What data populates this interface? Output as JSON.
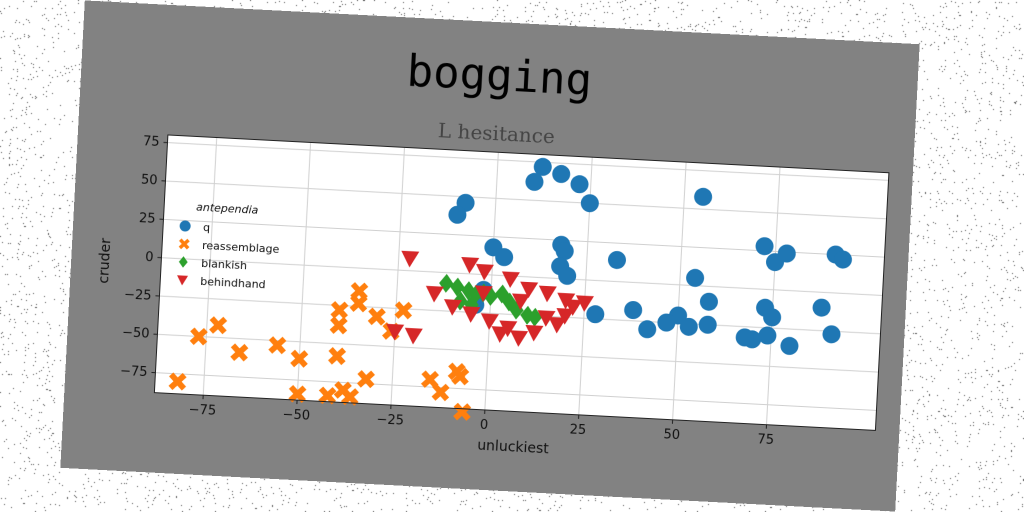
{
  "chart_data": {
    "type": "scatter",
    "title": "bogging",
    "subtitle": "L hesitance",
    "xlabel": "unluckiest",
    "ylabel": "cruder",
    "xlim": [
      -88,
      104
    ],
    "ylim": [
      -88,
      80
    ],
    "xticks": [
      -75,
      -50,
      -25,
      0,
      25,
      50,
      75
    ],
    "yticks": [
      75,
      50,
      25,
      0,
      -25,
      -50,
      -75
    ],
    "xtick_labels": [
      "−75",
      "−50",
      "−25",
      "0",
      "25",
      "50",
      "75"
    ],
    "ytick_labels": [
      "75",
      "50",
      "25",
      "0",
      "−25",
      "−50",
      "−75"
    ],
    "grid": true,
    "legend": {
      "title": "antependia",
      "position": "center-left"
    },
    "series": [
      {
        "name": "q",
        "color": "#1f77b4",
        "marker": "circle",
        "points": [
          [
            12,
            72
          ],
          [
            17,
            68
          ],
          [
            10,
            62
          ],
          [
            22,
            62
          ],
          [
            25,
            50
          ],
          [
            -8,
            46
          ],
          [
            -10,
            38
          ],
          [
            55,
            58
          ],
          [
            0,
            18
          ],
          [
            3,
            12
          ],
          [
            18,
            22
          ],
          [
            19,
            18
          ],
          [
            33,
            14
          ],
          [
            18,
            8
          ],
          [
            20,
            2
          ],
          [
            72,
            28
          ],
          [
            78,
            24
          ],
          [
            75,
            18
          ],
          [
            91,
            25
          ],
          [
            93,
            22
          ],
          [
            54,
            5
          ],
          [
            -2,
            -10
          ],
          [
            -4,
            -20
          ],
          [
            28,
            -22
          ],
          [
            38,
            -18
          ],
          [
            50,
            -20
          ],
          [
            47,
            -25
          ],
          [
            42,
            -30
          ],
          [
            53,
            -27
          ],
          [
            58,
            -25
          ],
          [
            58,
            -10
          ],
          [
            73,
            -12
          ],
          [
            75,
            -18
          ],
          [
            74,
            -30
          ],
          [
            70,
            -33
          ],
          [
            68,
            -32
          ],
          [
            80,
            -36
          ],
          [
            88,
            -10
          ],
          [
            91,
            -27
          ]
        ]
      },
      {
        "name": "reassemblage",
        "color": "#ff7f0e",
        "marker": "x",
        "points": [
          [
            -35,
            -15
          ],
          [
            -35,
            -23
          ],
          [
            -40,
            -28
          ],
          [
            -30,
            -31
          ],
          [
            -23,
            -26
          ],
          [
            -40,
            -38
          ],
          [
            -26,
            -40
          ],
          [
            -77,
            -50
          ],
          [
            -72,
            -42
          ],
          [
            -66,
            -59
          ],
          [
            -56,
            -53
          ],
          [
            -50,
            -61
          ],
          [
            -40,
            -58
          ],
          [
            -32,
            -72
          ],
          [
            -38,
            -80
          ],
          [
            -42,
            -84
          ],
          [
            -36,
            -84
          ],
          [
            -50,
            -84
          ],
          [
            -82,
            -80
          ],
          [
            -15,
            -70
          ],
          [
            -12,
            -78
          ],
          [
            -8,
            -64
          ],
          [
            -7,
            -67
          ],
          [
            -6,
            -90
          ]
        ]
      },
      {
        "name": "blankish",
        "color": "#2ca02c",
        "marker": "diamond",
        "points": [
          [
            -12,
            -7
          ],
          [
            -9,
            -9
          ],
          [
            -6,
            -11
          ],
          [
            -4,
            -13
          ],
          [
            -2,
            -12
          ],
          [
            0,
            -14
          ],
          [
            3,
            -12
          ],
          [
            5,
            -17
          ],
          [
            7,
            -22
          ],
          [
            10,
            -25
          ],
          [
            12,
            -26
          ],
          [
            -5,
            -20
          ],
          [
            -8,
            -18
          ]
        ]
      },
      {
        "name": "behindhand",
        "color": "#d62728",
        "marker": "triangle-down",
        "points": [
          [
            -22,
            8
          ],
          [
            -6,
            6
          ],
          [
            -2,
            2
          ],
          [
            5,
            -2
          ],
          [
            10,
            -8
          ],
          [
            -15,
            -14
          ],
          [
            -10,
            -22
          ],
          [
            -5,
            -26
          ],
          [
            0,
            -30
          ],
          [
            5,
            -34
          ],
          [
            8,
            -40
          ],
          [
            -25,
            -40
          ],
          [
            -20,
            -42
          ],
          [
            15,
            -26
          ],
          [
            20,
            -24
          ],
          [
            22,
            -18
          ],
          [
            25,
            -15
          ],
          [
            18,
            -30
          ],
          [
            12,
            -36
          ],
          [
            3,
            -38
          ],
          [
            -2,
            -12
          ],
          [
            15,
            -10
          ],
          [
            20,
            -14
          ],
          [
            8,
            -16
          ]
        ]
      }
    ]
  }
}
